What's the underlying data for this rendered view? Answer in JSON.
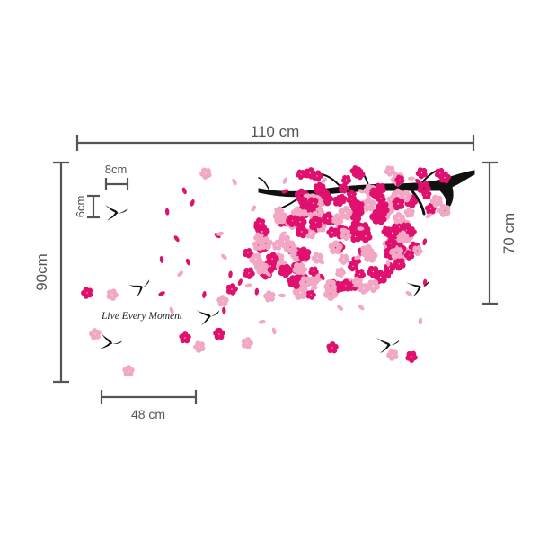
{
  "product": {
    "quote": "Live Every Moment"
  },
  "dimensions": {
    "width_total": "110 cm",
    "height_total": "90cm",
    "branch_height": "70 cm",
    "base_width": "48 cm",
    "bird_width": "8cm",
    "bird_height": "6cm"
  },
  "colors": {
    "dimension_line": "#555555",
    "blossom_dark": "#e0106e",
    "blossom_light": "#f2a7c4",
    "branch": "#111111",
    "bird": "#111111"
  }
}
